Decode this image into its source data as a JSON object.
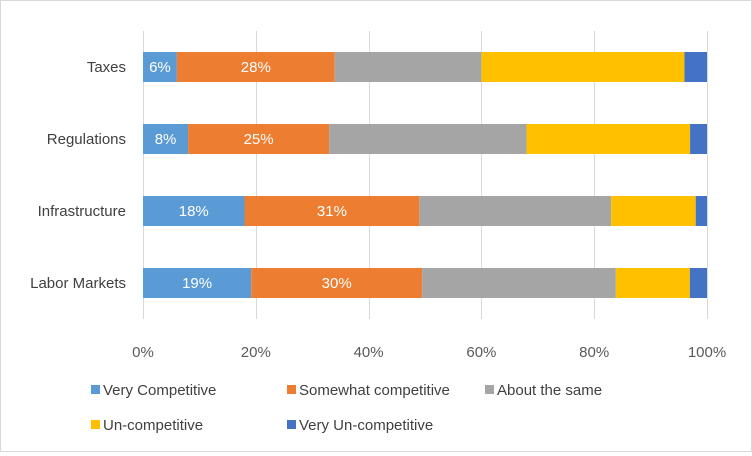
{
  "chart_data": {
    "type": "bar",
    "orientation": "horizontal",
    "stacked": "percent",
    "categories": [
      "Taxes",
      "Regulations",
      "Infrastructure",
      "Labor Markets"
    ],
    "series": [
      {
        "name": "Very Competitive",
        "color": "#5b9bd5",
        "values": [
          6,
          8,
          18,
          19
        ],
        "labels": [
          "6%",
          "8%",
          "18%",
          "19%"
        ]
      },
      {
        "name": "Somewhat competitive",
        "color": "#ed7d31",
        "values": [
          28,
          25,
          31,
          30
        ],
        "labels": [
          "28%",
          "25%",
          "31%",
          "30%"
        ]
      },
      {
        "name": "About the same",
        "color": "#a5a5a5",
        "values": [
          26,
          35,
          34,
          34
        ],
        "labels": [
          "",
          "",
          "",
          ""
        ]
      },
      {
        "name": "Un-competitive",
        "color": "#ffc000",
        "values": [
          36,
          29,
          15,
          13
        ],
        "labels": [
          "",
          "",
          "",
          ""
        ]
      },
      {
        "name": "Very Un-competitive",
        "color": "#4472c4",
        "values": [
          4,
          3,
          2,
          3
        ],
        "labels": [
          "",
          "",
          "",
          ""
        ]
      }
    ],
    "xlim": [
      0,
      100
    ],
    "xticks": [
      "0%",
      "20%",
      "40%",
      "60%",
      "80%",
      "100%"
    ],
    "grid": true,
    "legend": "bottom"
  }
}
